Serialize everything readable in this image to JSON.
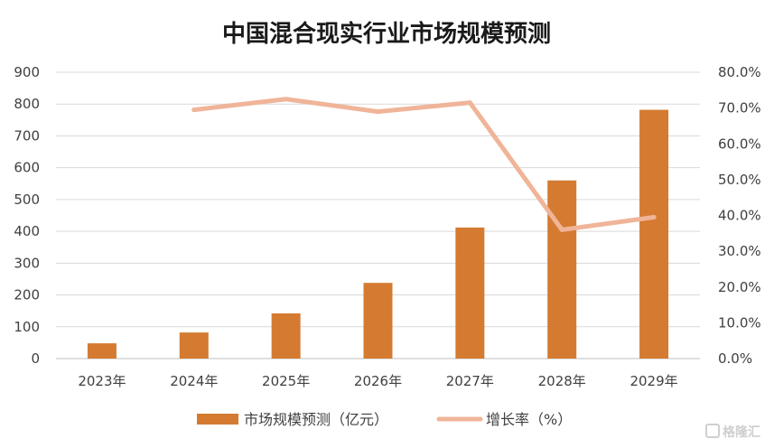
{
  "watermark": "格隆汇",
  "chart_data": {
    "type": "bar",
    "title": "中国混合现实行业市场规模预测",
    "categories": [
      "2023年",
      "2024年",
      "2025年",
      "2026年",
      "2027年",
      "2028年",
      "2029年"
    ],
    "series": [
      {
        "name": "市场规模预测（亿元）",
        "kind": "bar",
        "axis": "left",
        "color": "#D47B31",
        "values": [
          48,
          82,
          142,
          238,
          412,
          560,
          782
        ]
      },
      {
        "name": "增长率（%）",
        "kind": "line",
        "axis": "right",
        "color": "#F0B498",
        "values": [
          null,
          69.5,
          72.5,
          69.0,
          71.5,
          36.0,
          39.5
        ]
      }
    ],
    "y_left": {
      "min": 0,
      "max": 900,
      "ticks": [
        "0",
        "100",
        "200",
        "300",
        "400",
        "500",
        "600",
        "700",
        "800",
        "900"
      ]
    },
    "y_right": {
      "min": 0,
      "max": 80,
      "ticks": [
        "0.0%",
        "10.0%",
        "20.0%",
        "30.0%",
        "40.0%",
        "50.0%",
        "60.0%",
        "70.0%",
        "80.0%"
      ]
    },
    "grid": true,
    "legend": "bottom"
  }
}
